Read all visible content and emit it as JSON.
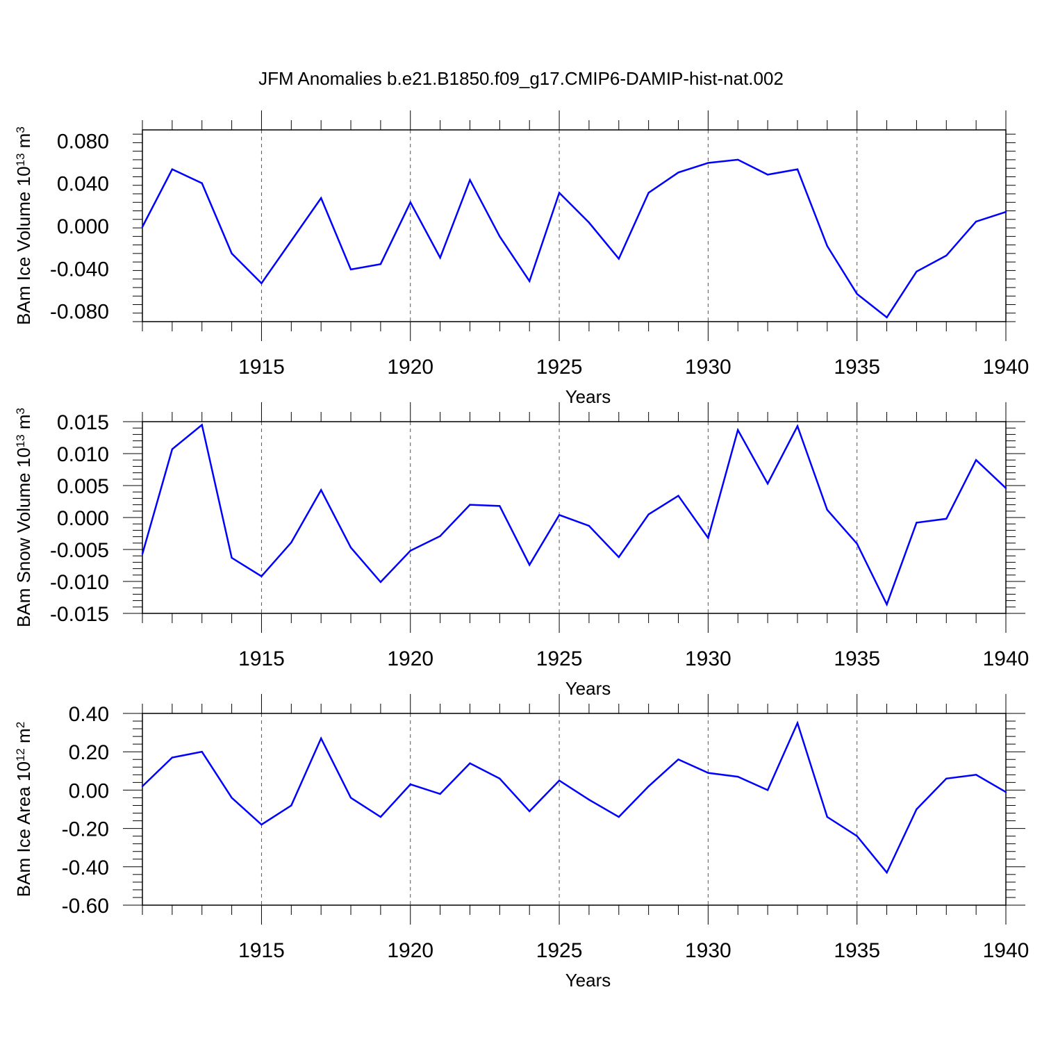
{
  "title": "JFM Anomalies b.e21.B1850.f09_g17.CMIP6-DAMIP-hist-nat.002",
  "colors": {
    "line": "#0000ff",
    "axis": "#000000",
    "grid": "#555555"
  },
  "chart_data": [
    {
      "type": "line",
      "ylabel": "BAm Ice Volume 10",
      "ylabel_exp": "13",
      "ylabel_unit": " m",
      "ylabel_unit_exp": "3",
      "xlabel": "Years",
      "xlim": [
        1911,
        1940
      ],
      "ylim": [
        -0.09,
        0.09
      ],
      "yticks": [
        0.08,
        0.04,
        0.0,
        -0.04,
        -0.08
      ],
      "ytick_labels": [
        "0.080",
        "0.040",
        "0.000",
        "-0.040",
        "-0.080"
      ],
      "xticks": [
        1915,
        1920,
        1925,
        1930,
        1935,
        1940
      ],
      "xtick_labels": [
        "1915",
        "1920",
        "1925",
        "1930",
        "1935",
        "1940"
      ],
      "grid": "vertical dashed at major x ticks",
      "x": [
        1911,
        1912,
        1913,
        1914,
        1915,
        1916,
        1917,
        1918,
        1919,
        1920,
        1921,
        1922,
        1923,
        1924,
        1925,
        1926,
        1927,
        1928,
        1929,
        1930,
        1931,
        1932,
        1933,
        1934,
        1935,
        1936,
        1937,
        1938,
        1939,
        1940
      ],
      "values": [
        -0.001,
        0.053,
        0.04,
        -0.026,
        -0.054,
        -0.014,
        0.026,
        -0.041,
        -0.036,
        0.022,
        -0.03,
        0.043,
        -0.01,
        -0.052,
        0.031,
        0.003,
        -0.031,
        0.031,
        0.05,
        0.059,
        0.062,
        0.048,
        0.053,
        -0.019,
        -0.064,
        -0.086,
        -0.043,
        -0.028,
        0.004,
        0.013
      ]
    },
    {
      "type": "line",
      "ylabel": "BAm Snow Volume 10",
      "ylabel_exp": "13",
      "ylabel_unit": " m",
      "ylabel_unit_exp": "3",
      "xlabel": "Years",
      "xlim": [
        1911,
        1940
      ],
      "ylim": [
        -0.015,
        0.015
      ],
      "yticks": [
        0.015,
        0.01,
        0.005,
        0.0,
        -0.005,
        -0.01,
        -0.015
      ],
      "ytick_labels": [
        "0.015",
        "0.010",
        "0.005",
        "0.000",
        "-0.005",
        "-0.010",
        "-0.015"
      ],
      "xticks": [
        1915,
        1920,
        1925,
        1930,
        1935,
        1940
      ],
      "xtick_labels": [
        "1915",
        "1920",
        "1925",
        "1930",
        "1935",
        "1940"
      ],
      "grid": "vertical dashed at major x ticks",
      "x": [
        1911,
        1912,
        1913,
        1914,
        1915,
        1916,
        1917,
        1918,
        1919,
        1920,
        1921,
        1922,
        1923,
        1924,
        1925,
        1926,
        1927,
        1928,
        1929,
        1930,
        1931,
        1932,
        1933,
        1934,
        1935,
        1936,
        1937,
        1938,
        1939,
        1940
      ],
      "values": [
        -0.0057,
        0.0107,
        0.0145,
        -0.0063,
        -0.0092,
        -0.0039,
        0.0043,
        -0.0047,
        -0.0101,
        -0.0052,
        -0.0029,
        0.002,
        0.0018,
        -0.0074,
        0.0004,
        -0.0013,
        -0.0062,
        0.0005,
        0.0034,
        -0.0032,
        0.0137,
        0.0053,
        0.0143,
        0.0012,
        -0.0041,
        -0.0136,
        -0.0008,
        -0.0002,
        0.009,
        0.0046
      ]
    },
    {
      "type": "line",
      "ylabel": "BAm Ice Area 10",
      "ylabel_exp": "12",
      "ylabel_unit": " m",
      "ylabel_unit_exp": "2",
      "xlabel": "Years",
      "xlim": [
        1911,
        1940
      ],
      "ylim": [
        -0.6,
        0.4
      ],
      "yticks": [
        0.4,
        0.2,
        0.0,
        -0.2,
        -0.4,
        -0.6
      ],
      "ytick_labels": [
        "0.40",
        "0.20",
        "0.00",
        "-0.20",
        "-0.40",
        "-0.60"
      ],
      "xticks": [
        1915,
        1920,
        1925,
        1930,
        1935,
        1940
      ],
      "xtick_labels": [
        "1915",
        "1920",
        "1925",
        "1930",
        "1935",
        "1940"
      ],
      "grid": "vertical dashed at major x ticks",
      "x": [
        1911,
        1912,
        1913,
        1914,
        1915,
        1916,
        1917,
        1918,
        1919,
        1920,
        1921,
        1922,
        1923,
        1924,
        1925,
        1926,
        1927,
        1928,
        1929,
        1930,
        1931,
        1932,
        1933,
        1934,
        1935,
        1936,
        1937,
        1938,
        1939,
        1940
      ],
      "values": [
        0.02,
        0.17,
        0.2,
        -0.04,
        -0.18,
        -0.08,
        0.27,
        -0.04,
        -0.14,
        0.03,
        -0.02,
        0.14,
        0.06,
        -0.11,
        0.05,
        -0.05,
        -0.14,
        0.02,
        0.16,
        0.09,
        0.07,
        0.0,
        0.35,
        -0.14,
        -0.24,
        -0.43,
        -0.1,
        0.06,
        0.08,
        -0.01
      ]
    }
  ]
}
